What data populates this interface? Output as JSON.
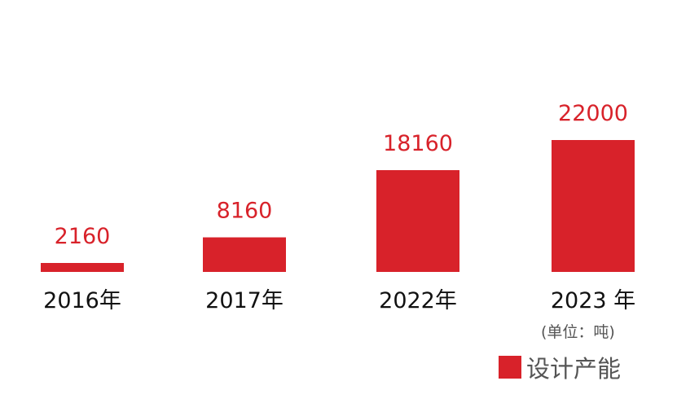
{
  "chart_data": {
    "type": "bar",
    "categories": [
      "2016年",
      "2017年",
      "2022年",
      "2023 年"
    ],
    "series": [
      {
        "name": "设计产能",
        "values": [
          2160,
          8160,
          18160,
          22000
        ]
      }
    ],
    "data_labels": [
      "2160",
      "8160",
      "18160",
      "22000"
    ],
    "unit_note": "(单位：吨)",
    "legend": {
      "label": "设计产能",
      "placement": "bottom-right"
    },
    "grid": false,
    "bar_color": "#d8222a",
    "label_color": "#d8222a"
  }
}
